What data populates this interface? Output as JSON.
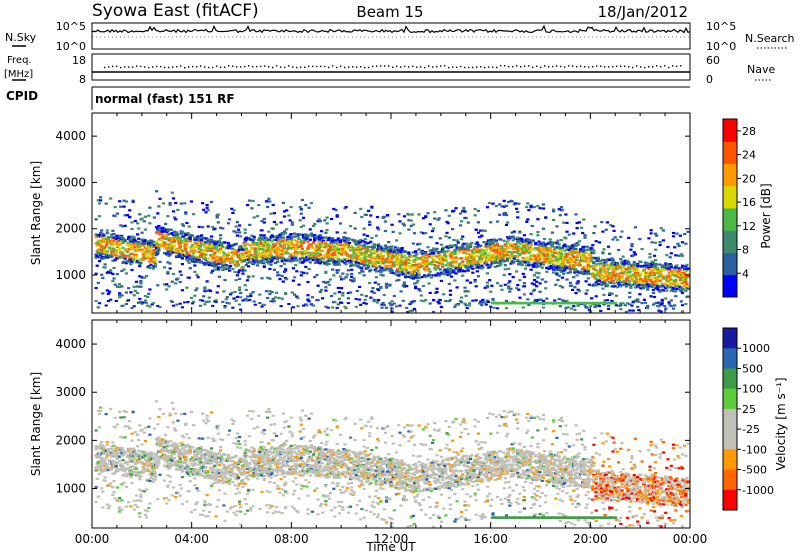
{
  "header": {
    "title": "Syowa East (fitACF)",
    "beam": "Beam 15",
    "date": "18/Jan/2012"
  },
  "noise_panel": {
    "left_label": "N.Sky",
    "right_label": "N.Search",
    "left_ticks": [
      "10^5",
      "10^0"
    ],
    "right_ticks": [
      "10^5",
      "10^0"
    ]
  },
  "freq_panel": {
    "left_label_line1": "Freq.",
    "left_label_line2": "[MHz]",
    "right_label": "Nave",
    "left_ticks": [
      "18",
      "8"
    ],
    "right_ticks": [
      "60",
      "0"
    ]
  },
  "cpid_panel": {
    "label": "CPID",
    "text": "normal (fast) 151 RF"
  },
  "colors": {
    "power": [
      "#0000ff",
      "#2a5fa0",
      "#3e8a6a",
      "#4cb848",
      "#d8d800",
      "#ff9900",
      "#ff5500",
      "#ff0000"
    ],
    "velocity": [
      "#1a1aa0",
      "#2b66b3",
      "#3f9a4a",
      "#5ccc3a",
      "#c0c0b8",
      "#c0c0b8",
      "#ff9900",
      "#ff6600",
      "#ff0000"
    ]
  },
  "chart_data": [
    {
      "type": "heatmap",
      "name": "power",
      "ylabel": "Slant Range [km]",
      "ylim": [
        180,
        4500
      ],
      "y_ticks": [
        "1000",
        "2000",
        "3000",
        "4000"
      ],
      "xlim": [
        0,
        24
      ],
      "colorbar_label": "Power [dB]",
      "colorbar_ticks": [
        "4",
        "8",
        "12",
        "16",
        "20",
        "24",
        "28"
      ],
      "colorbar_range": [
        0,
        30
      ]
    },
    {
      "type": "heatmap",
      "name": "velocity",
      "ylabel": "Slant Range [km]",
      "ylim": [
        180,
        4500
      ],
      "y_ticks": [
        "1000",
        "2000",
        "3000",
        "4000"
      ],
      "xlabel": "Time UT",
      "x_ticks": [
        "00:00",
        "04:00",
        "08:00",
        "12:00",
        "16:00",
        "20:00",
        "00:00"
      ],
      "xlim": [
        0,
        24
      ],
      "colorbar_label": "Velocity [m s⁻¹]",
      "colorbar_ticks": [
        "1000",
        "500",
        "100",
        "25",
        "-25",
        "-100",
        "-500",
        "-1000"
      ]
    }
  ]
}
